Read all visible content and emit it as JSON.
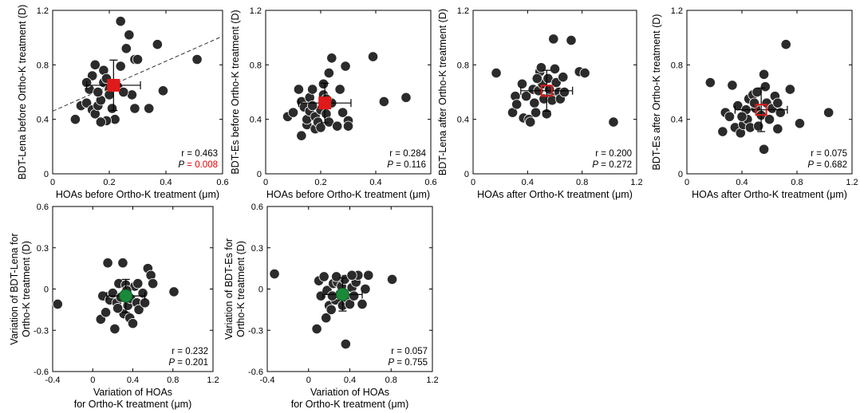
{
  "chart_data": [
    {
      "type": "scatter",
      "xlabel": "HOAs before Ortho-K treatment (μm)",
      "ylabel": "BDT-Lena before Ortho-K treatment (D)",
      "xlim": [
        0,
        0.6
      ],
      "ylim": [
        0,
        1.2
      ],
      "xticks": [
        "0",
        "0.2",
        "0.4",
        "0.6"
      ],
      "yticks": [
        "0",
        "0.4",
        "0.8",
        "1.2"
      ],
      "r_label": "r = 0.463",
      "p_label": "P",
      "p_value": "= 0.008",
      "p_color": "#e60000",
      "trend_line": [
        [
          0,
          0.46
        ],
        [
          0.6,
          1.01
        ]
      ],
      "mean": {
        "x": 0.215,
        "y": 0.65,
        "x_err": 0.095,
        "y_err": 0.185,
        "color": "#e01a1a",
        "filled": true
      },
      "points": [
        [
          0.08,
          0.4
        ],
        [
          0.1,
          0.5
        ],
        [
          0.12,
          0.52
        ],
        [
          0.13,
          0.62
        ],
        [
          0.14,
          0.72
        ],
        [
          0.15,
          0.8
        ],
        [
          0.14,
          0.47
        ],
        [
          0.15,
          0.44
        ],
        [
          0.16,
          0.5
        ],
        [
          0.17,
          0.54
        ],
        [
          0.18,
          0.67
        ],
        [
          0.18,
          0.76
        ],
        [
          0.19,
          0.7
        ],
        [
          0.2,
          0.62
        ],
        [
          0.2,
          0.58
        ],
        [
          0.21,
          0.48
        ],
        [
          0.22,
          0.4
        ],
        [
          0.19,
          0.39
        ],
        [
          0.23,
          0.64
        ],
        [
          0.24,
          0.79
        ],
        [
          0.24,
          1.12
        ],
        [
          0.26,
          0.92
        ],
        [
          0.27,
          1.02
        ],
        [
          0.29,
          0.84
        ],
        [
          0.3,
          0.84
        ],
        [
          0.28,
          0.58
        ],
        [
          0.29,
          0.48
        ],
        [
          0.34,
          0.48
        ],
        [
          0.37,
          0.95
        ],
        [
          0.39,
          0.61
        ],
        [
          0.51,
          0.84
        ],
        [
          0.12,
          0.67
        ],
        [
          0.17,
          0.38
        ],
        [
          0.25,
          0.6
        ],
        [
          0.16,
          0.6
        ]
      ]
    },
    {
      "type": "scatter",
      "xlabel": "HOAs before Ortho-K treatment (μm)",
      "ylabel": "BDT-Es before Ortho-K treatment (D)",
      "xlim": [
        0,
        0.6
      ],
      "ylim": [
        0,
        1.2
      ],
      "xticks": [
        "0",
        "0.2",
        "0.4",
        "0.6"
      ],
      "yticks": [
        "0",
        "0.4",
        "0.8",
        "1.2"
      ],
      "r_label": "r = 0.284",
      "p_label": "P",
      "p_value": "= 0.116",
      "p_color": "#000000",
      "trend_line": null,
      "mean": {
        "x": 0.215,
        "y": 0.52,
        "x_err": 0.095,
        "y_err": 0.145,
        "color": "#e01a1a",
        "filled": true
      },
      "points": [
        [
          0.08,
          0.42
        ],
        [
          0.1,
          0.45
        ],
        [
          0.12,
          0.62
        ],
        [
          0.13,
          0.53
        ],
        [
          0.14,
          0.49
        ],
        [
          0.15,
          0.36
        ],
        [
          0.15,
          0.4
        ],
        [
          0.16,
          0.46
        ],
        [
          0.16,
          0.56
        ],
        [
          0.17,
          0.62
        ],
        [
          0.18,
          0.33
        ],
        [
          0.18,
          0.42
        ],
        [
          0.19,
          0.38
        ],
        [
          0.2,
          0.34
        ],
        [
          0.2,
          0.47
        ],
        [
          0.21,
          0.58
        ],
        [
          0.21,
          0.66
        ],
        [
          0.22,
          0.44
        ],
        [
          0.23,
          0.38
        ],
        [
          0.23,
          0.74
        ],
        [
          0.24,
          0.85
        ],
        [
          0.24,
          0.52
        ],
        [
          0.26,
          0.35
        ],
        [
          0.27,
          0.62
        ],
        [
          0.28,
          0.45
        ],
        [
          0.29,
          0.79
        ],
        [
          0.3,
          0.39
        ],
        [
          0.3,
          0.35
        ],
        [
          0.13,
          0.28
        ],
        [
          0.39,
          0.86
        ],
        [
          0.43,
          0.53
        ],
        [
          0.51,
          0.56
        ],
        [
          0.17,
          0.5
        ],
        [
          0.22,
          0.55
        ]
      ]
    },
    {
      "type": "scatter",
      "xlabel": "HOAs after Ortho-K treatment (μm)",
      "ylabel": "BDT-Lena after Ortho-K treatment (D)",
      "xlim": [
        0,
        1.2
      ],
      "ylim": [
        0,
        1.2
      ],
      "xticks": [
        "0",
        "0.4",
        "0.8",
        "1.2"
      ],
      "yticks": [
        "0",
        "0.4",
        "0.8",
        "1.2"
      ],
      "r_label": "r = 0.200",
      "p_label": "P",
      "p_value": "= 0.272",
      "p_color": "#000000",
      "trend_line": null,
      "mean": {
        "x": 0.54,
        "y": 0.61,
        "x_err": 0.19,
        "y_err": 0.15,
        "color": "#e01a1a",
        "filled": false
      },
      "points": [
        [
          0.17,
          0.74
        ],
        [
          0.29,
          0.45
        ],
        [
          0.31,
          0.57
        ],
        [
          0.32,
          0.51
        ],
        [
          0.36,
          0.66
        ],
        [
          0.37,
          0.41
        ],
        [
          0.39,
          0.57
        ],
        [
          0.41,
          0.4
        ],
        [
          0.42,
          0.38
        ],
        [
          0.44,
          0.62
        ],
        [
          0.45,
          0.52
        ],
        [
          0.46,
          0.45
        ],
        [
          0.48,
          0.61
        ],
        [
          0.49,
          0.75
        ],
        [
          0.5,
          0.78
        ],
        [
          0.51,
          0.66
        ],
        [
          0.52,
          0.55
        ],
        [
          0.54,
          0.44
        ],
        [
          0.55,
          0.7
        ],
        [
          0.57,
          0.58
        ],
        [
          0.58,
          0.54
        ],
        [
          0.59,
          0.99
        ],
        [
          0.6,
          0.77
        ],
        [
          0.61,
          0.67
        ],
        [
          0.63,
          0.6
        ],
        [
          0.64,
          0.55
        ],
        [
          0.66,
          0.71
        ],
        [
          0.67,
          0.6
        ],
        [
          0.72,
          0.98
        ],
        [
          0.78,
          0.75
        ],
        [
          0.82,
          0.74
        ],
        [
          1.03,
          0.38
        ],
        [
          0.56,
          0.62
        ],
        [
          0.47,
          0.7
        ]
      ]
    },
    {
      "type": "scatter",
      "xlabel": "HOAs after Ortho-K treatment (μm)",
      "ylabel": "BDT-Es after Ortho-K treatment (D)",
      "xlim": [
        0,
        1.2
      ],
      "ylim": [
        0,
        1.2
      ],
      "xticks": [
        "0",
        "0.4",
        "0.8",
        "1.2"
      ],
      "yticks": [
        "0",
        "0.4",
        "0.8",
        "1.2"
      ],
      "r_label": "r = 0.075",
      "p_label": "P",
      "p_value": "= 0.682",
      "p_color": "#000000",
      "trend_line": null,
      "mean": {
        "x": 0.54,
        "y": 0.47,
        "x_err": 0.19,
        "y_err": 0.16,
        "color": "#e01a1a",
        "filled": false
      },
      "points": [
        [
          0.17,
          0.67
        ],
        [
          0.26,
          0.31
        ],
        [
          0.28,
          0.45
        ],
        [
          0.31,
          0.42
        ],
        [
          0.33,
          0.65
        ],
        [
          0.35,
          0.34
        ],
        [
          0.37,
          0.5
        ],
        [
          0.39,
          0.3
        ],
        [
          0.41,
          0.36
        ],
        [
          0.43,
          0.47
        ],
        [
          0.44,
          0.4
        ],
        [
          0.45,
          0.55
        ],
        [
          0.46,
          0.34
        ],
        [
          0.48,
          0.58
        ],
        [
          0.5,
          0.48
        ],
        [
          0.51,
          0.6
        ],
        [
          0.52,
          0.35
        ],
        [
          0.54,
          0.43
        ],
        [
          0.56,
          0.73
        ],
        [
          0.57,
          0.64
        ],
        [
          0.58,
          0.52
        ],
        [
          0.6,
          0.4
        ],
        [
          0.62,
          0.48
        ],
        [
          0.64,
          0.57
        ],
        [
          0.66,
          0.33
        ],
        [
          0.68,
          0.45
        ],
        [
          0.72,
          0.95
        ],
        [
          0.75,
          0.62
        ],
        [
          0.82,
          0.37
        ],
        [
          1.03,
          0.45
        ],
        [
          0.56,
          0.18
        ],
        [
          0.49,
          0.52
        ],
        [
          0.4,
          0.42
        ],
        [
          0.66,
          0.52
        ]
      ]
    },
    {
      "type": "scatter",
      "xlabel": "Variation of HOAs|for Ortho-K treatment (μm)",
      "ylabel": "Variation of BDT-Lena for|Ortho-K treatment (D)",
      "xlim": [
        -0.4,
        1.2
      ],
      "ylim": [
        -0.6,
        0.6
      ],
      "xticks": [
        "-0.4",
        "0",
        "0.4",
        "0.8",
        "1.2"
      ],
      "yticks": [
        "-0.6",
        "-0.3",
        "0",
        "0.3",
        "0.6"
      ],
      "r_label": "r = 0.232",
      "p_label": "P",
      "p_value": "= 0.201",
      "p_color": "#000000",
      "trend_line": null,
      "mean": {
        "x": 0.33,
        "y": -0.05,
        "x_err": 0.19,
        "y_err": 0.12,
        "color": "#1a8a3a",
        "filled": true
      },
      "points": [
        [
          -0.35,
          -0.11
        ],
        [
          0.08,
          -0.22
        ],
        [
          0.1,
          -0.05
        ],
        [
          0.13,
          -0.17
        ],
        [
          0.15,
          0.19
        ],
        [
          0.17,
          -0.08
        ],
        [
          0.2,
          -0.03
        ],
        [
          0.22,
          -0.29
        ],
        [
          0.24,
          -0.1
        ],
        [
          0.26,
          0.04
        ],
        [
          0.28,
          -0.06
        ],
        [
          0.3,
          0.19
        ],
        [
          0.31,
          -0.18
        ],
        [
          0.33,
          0.03
        ],
        [
          0.35,
          -0.12
        ],
        [
          0.37,
          -0.21
        ],
        [
          0.38,
          -0.07
        ],
        [
          0.4,
          -0.25
        ],
        [
          0.42,
          0.02
        ],
        [
          0.44,
          -0.1
        ],
        [
          0.46,
          -0.15
        ],
        [
          0.5,
          -0.03
        ],
        [
          0.52,
          -0.1
        ],
        [
          0.55,
          0.15
        ],
        [
          0.58,
          0.1
        ],
        [
          0.6,
          0.04
        ],
        [
          0.81,
          -0.02
        ],
        [
          0.25,
          -0.14
        ],
        [
          0.34,
          -0.01
        ],
        [
          0.45,
          0.04
        ]
      ]
    },
    {
      "type": "scatter",
      "xlabel": "Variation of HOAs|for Ortho-K treatment (μm)",
      "ylabel": "Variation of BDT-Es for|Ortho-K treatment (D)",
      "xlim": [
        -0.4,
        1.2
      ],
      "ylim": [
        -0.6,
        0.6
      ],
      "xticks": [
        "-0.4",
        "0",
        "0.4",
        "0.8",
        "1.2"
      ],
      "yticks": [
        "-0.6",
        "-0.3",
        "0",
        "0.3",
        "0.6"
      ],
      "r_label": "r = 0.057",
      "p_label": "P",
      "p_value": "= 0.755",
      "p_color": "#000000",
      "trend_line": null,
      "mean": {
        "x": 0.33,
        "y": -0.04,
        "x_err": 0.19,
        "y_err": 0.12,
        "color": "#1a8a3a",
        "filled": true
      },
      "points": [
        [
          -0.33,
          0.11
        ],
        [
          0.08,
          -0.29
        ],
        [
          0.1,
          0.06
        ],
        [
          0.12,
          -0.05
        ],
        [
          0.15,
          0.09
        ],
        [
          0.17,
          -0.21
        ],
        [
          0.18,
          -0.01
        ],
        [
          0.2,
          -0.12
        ],
        [
          0.22,
          -0.15
        ],
        [
          0.24,
          0.04
        ],
        [
          0.26,
          -0.08
        ],
        [
          0.28,
          0.05
        ],
        [
          0.3,
          -0.04
        ],
        [
          0.32,
          0.02
        ],
        [
          0.33,
          -0.12
        ],
        [
          0.35,
          0.07
        ],
        [
          0.36,
          -0.4
        ],
        [
          0.38,
          -0.07
        ],
        [
          0.4,
          -0.11
        ],
        [
          0.42,
          0.01
        ],
        [
          0.44,
          -0.05
        ],
        [
          0.46,
          0.05
        ],
        [
          0.48,
          0.1
        ],
        [
          0.52,
          -0.11
        ],
        [
          0.55,
          0.0
        ],
        [
          0.58,
          0.1
        ],
        [
          0.81,
          0.07
        ],
        [
          0.23,
          -0.05
        ],
        [
          0.42,
          0.1
        ],
        [
          0.27,
          0.09
        ]
      ]
    }
  ]
}
